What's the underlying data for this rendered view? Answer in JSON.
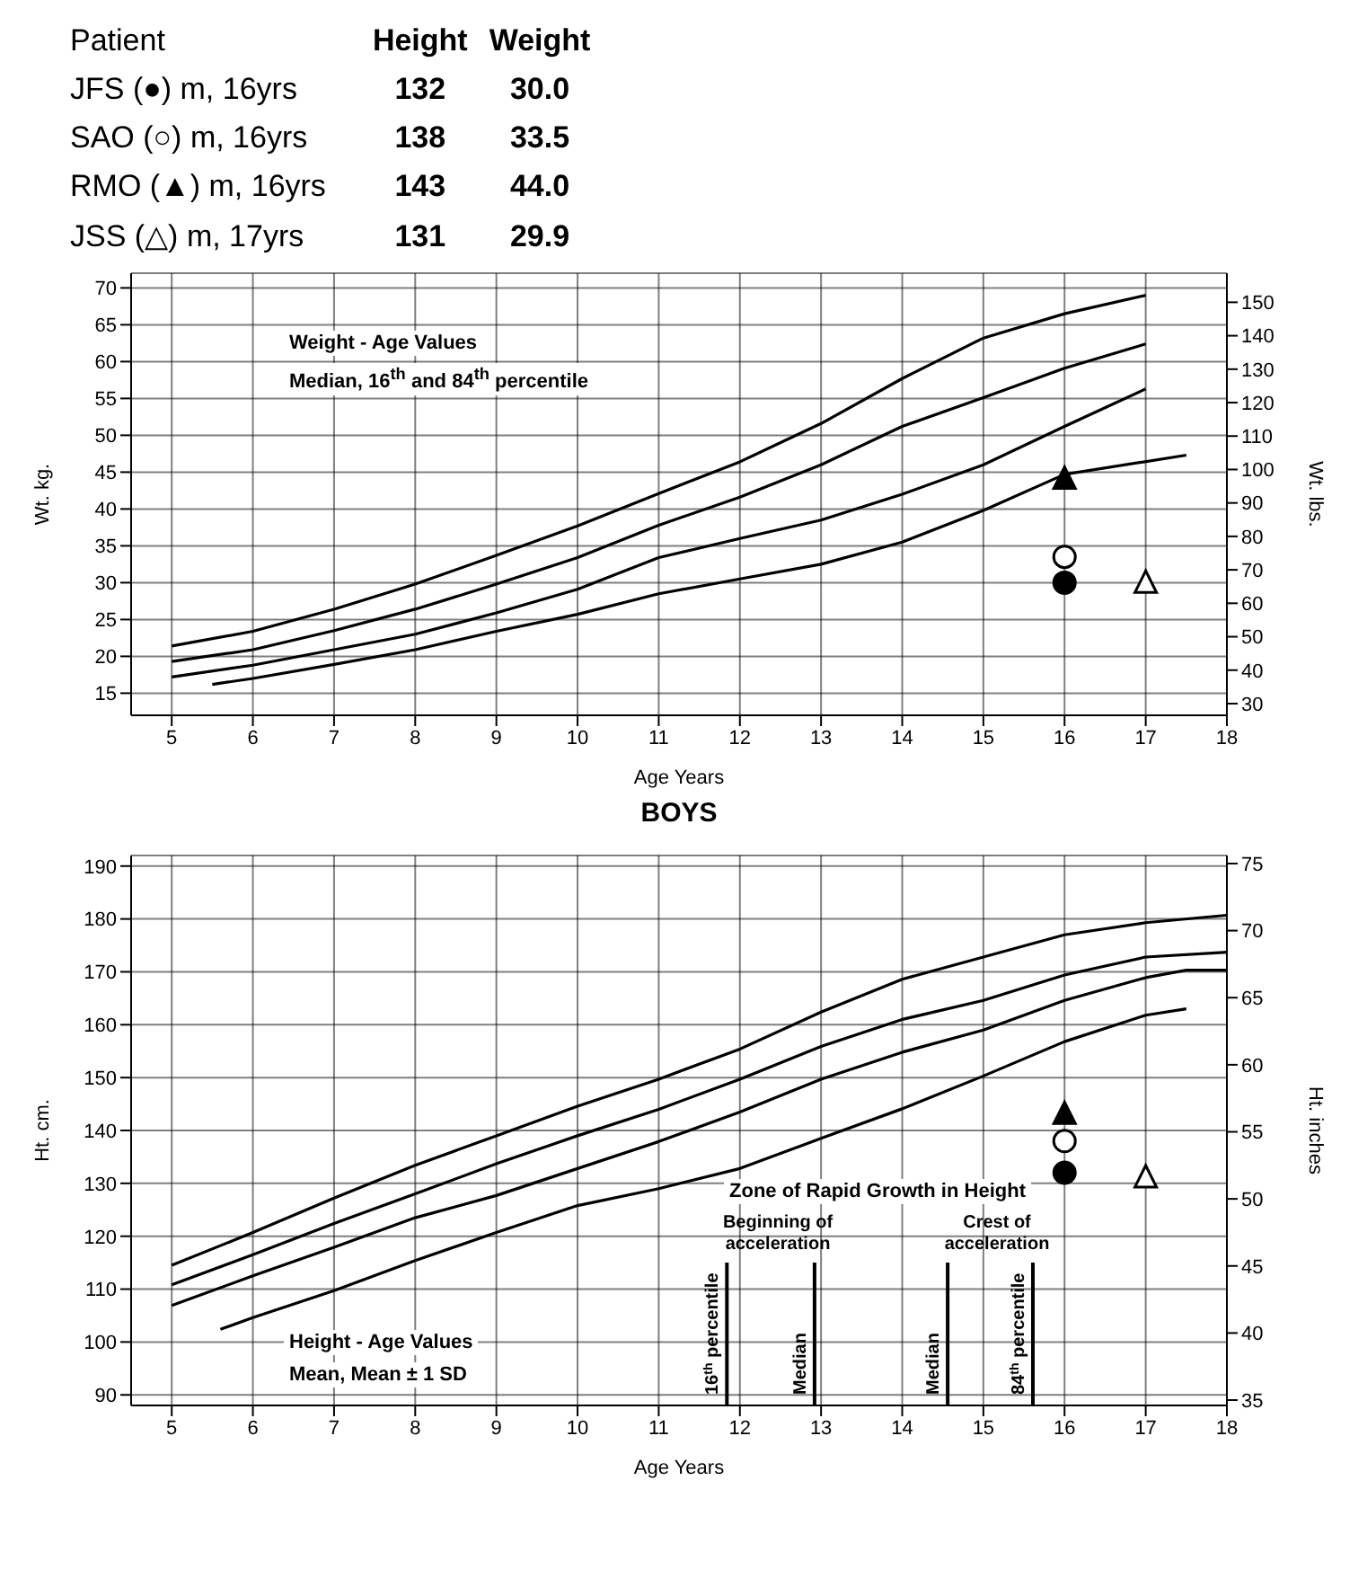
{
  "chart_data": [
    {
      "type": "other",
      "annotations": [
        "Patient"
      ],
      "categories": [
        "JFS (●) m, 16yrs",
        "SAO (○) m, 16yrs",
        "RMO (▲) m, 16yrs",
        "JSS (△) m, 17yrs"
      ],
      "series": [
        {
          "name": "Height",
          "values": [
            132,
            138,
            143,
            131
          ],
          "value_labels": [
            "132",
            "138",
            "143",
            "131"
          ]
        },
        {
          "name": "Weight",
          "values": [
            30.0,
            33.5,
            44.0,
            29.9
          ],
          "value_labels": [
            "30.0",
            "33.5",
            "44.0",
            "29.9"
          ]
        }
      ]
    },
    {
      "type": "line",
      "xlabel": "Age Years",
      "ylabel": "Wt. kg.",
      "y2label": "Wt. lbs.",
      "xlim": [
        4.5,
        18
      ],
      "xticks": [
        5,
        6,
        7,
        8,
        9,
        10,
        11,
        12,
        13,
        14,
        15,
        16,
        17,
        18
      ],
      "ylim": [
        12,
        72
      ],
      "yticks": [
        15,
        20,
        25,
        30,
        35,
        40,
        45,
        50,
        55,
        60,
        65,
        70
      ],
      "y2lim": [
        26.5,
        158.7
      ],
      "y2ticks": [
        30,
        40,
        50,
        60,
        70,
        80,
        90,
        100,
        110,
        120,
        130,
        140,
        150
      ],
      "grid": true,
      "marker": "none",
      "line_style": "solid",
      "annotations": [
        "Weight - Age Values",
        "Median, 16$^{th}$ and 84$^{th}$ percentile"
      ],
      "series": [
        {
          "color": "#000000",
          "x": [
            5,
            6,
            7,
            8,
            9,
            10,
            11,
            12,
            13,
            14,
            15,
            16,
            17
          ],
          "values": [
            21.4,
            23.4,
            26.4,
            29.8,
            33.7,
            37.7,
            42.1,
            46.4,
            51.6,
            57.7,
            63.2,
            66.5,
            69
          ]
        },
        {
          "color": "#000000",
          "x": [
            5,
            6,
            7,
            8,
            9,
            10,
            11,
            12,
            13,
            14,
            15,
            16,
            17
          ],
          "values": [
            19.3,
            20.9,
            23.5,
            26.4,
            29.8,
            33.4,
            37.8,
            41.6,
            46,
            51.2,
            55.1,
            59.1,
            62.4
          ]
        },
        {
          "color": "#000000",
          "x": [
            5,
            6,
            7,
            8,
            9,
            10,
            11,
            12,
            13,
            14,
            15,
            16,
            17
          ],
          "values": [
            17.2,
            18.8,
            20.9,
            23,
            25.9,
            29.1,
            33.4,
            36,
            38.5,
            42,
            46,
            51.2,
            56.3
          ]
        },
        {
          "color": "#000000",
          "x": [
            5.5,
            6,
            7,
            8,
            9,
            10,
            11,
            12,
            13,
            14,
            15,
            16,
            17.5
          ],
          "values": [
            16.2,
            17,
            18.9,
            20.9,
            23.4,
            25.7,
            28.5,
            30.5,
            32.5,
            35.5,
            39.8,
            44.7,
            47.3
          ]
        },
        {
          "type": "scatter",
          "marker": "circle",
          "color": "#000000",
          "x": [
            16
          ],
          "values": [
            30.0
          ]
        },
        {
          "type": "scatter",
          "marker": "circle",
          "color": "#ffffff",
          "x": [
            16
          ],
          "values": [
            33.5
          ]
        },
        {
          "type": "scatter",
          "marker": "triangle",
          "color": "#000000",
          "x": [
            16
          ],
          "values": [
            44.0
          ]
        },
        {
          "type": "scatter",
          "marker": "triangle",
          "color": "#ffffff",
          "x": [
            17
          ],
          "values": [
            29.9
          ]
        }
      ]
    },
    {
      "type": "line",
      "title": "BOYS",
      "xlabel": "Age Years",
      "ylabel": "Ht. cm.",
      "y2label": "Ht. inches",
      "xlim": [
        4.5,
        18
      ],
      "xticks": [
        5,
        6,
        7,
        8,
        9,
        10,
        11,
        12,
        13,
        14,
        15,
        16,
        17,
        18
      ],
      "ylim": [
        88,
        192
      ],
      "yticks": [
        90,
        100,
        110,
        120,
        130,
        140,
        150,
        160,
        170,
        180,
        190
      ],
      "y2lim": [
        34.6,
        75.6
      ],
      "y2ticks": [
        35,
        40,
        45,
        50,
        55,
        60,
        65,
        70,
        75
      ],
      "grid": true,
      "marker": "none",
      "line_style": "solid",
      "annotations": [
        "Height - Age Values",
        "Mean, Mean ± 1 SD",
        "Zone of Rapid Growth in Height",
        "Beginning of acceleration",
        "Crest of acceleration"
      ],
      "ref_lines": [
        {
          "axis": "x",
          "value": 11.84,
          "label": "16$^{th}$ percentile"
        },
        {
          "axis": "x",
          "value": 12.92,
          "label": "Median"
        },
        {
          "axis": "x",
          "value": 14.56,
          "label": "Median"
        },
        {
          "axis": "x",
          "value": 15.61,
          "label": "84$^{th}$ percentile"
        }
      ],
      "series": [
        {
          "color": "#000000",
          "x": [
            5,
            6,
            7,
            8,
            9,
            10,
            11,
            12,
            13,
            14,
            15,
            16,
            17,
            18
          ],
          "values": [
            114.5,
            120.7,
            127.2,
            133.4,
            139,
            144.6,
            149.7,
            155.4,
            162.4,
            168.6,
            172.8,
            177,
            179.3,
            180.7
          ]
        },
        {
          "color": "#000000",
          "x": [
            5,
            6,
            7,
            8,
            9,
            10,
            11,
            12,
            13,
            14,
            15,
            16,
            17,
            18
          ],
          "values": [
            110.8,
            116.5,
            122.4,
            128,
            133.7,
            139,
            144,
            149.7,
            155.9,
            161,
            164.6,
            169.4,
            172.8,
            173.7
          ]
        },
        {
          "color": "#000000",
          "x": [
            5,
            6,
            7,
            8,
            9,
            10,
            11,
            12,
            13,
            14,
            15,
            16,
            17,
            17.5,
            18
          ],
          "values": [
            106.9,
            112.5,
            117.9,
            123.5,
            127.7,
            132.8,
            137.9,
            143.5,
            149.7,
            154.8,
            159,
            164.6,
            168.9,
            170.3,
            170.3
          ]
        },
        {
          "color": "#000000",
          "x": [
            5.6,
            6,
            7,
            8,
            9,
            10,
            11,
            12,
            13,
            14,
            15,
            16,
            17,
            17.5
          ],
          "values": [
            102.4,
            104.6,
            109.7,
            115.4,
            120.7,
            125.8,
            129,
            132.8,
            138.5,
            144.1,
            150.3,
            156.8,
            161.8,
            163
          ]
        },
        {
          "type": "scatter",
          "marker": "circle",
          "color": "#000000",
          "x": [
            16
          ],
          "values": [
            132
          ]
        },
        {
          "type": "scatter",
          "marker": "circle",
          "color": "#ffffff",
          "x": [
            16
          ],
          "values": [
            138
          ]
        },
        {
          "type": "scatter",
          "marker": "triangle",
          "color": "#000000",
          "x": [
            16
          ],
          "values": [
            143
          ]
        },
        {
          "type": "scatter",
          "marker": "triangle",
          "color": "#ffffff",
          "x": [
            17
          ],
          "values": [
            131
          ]
        }
      ]
    }
  ]
}
